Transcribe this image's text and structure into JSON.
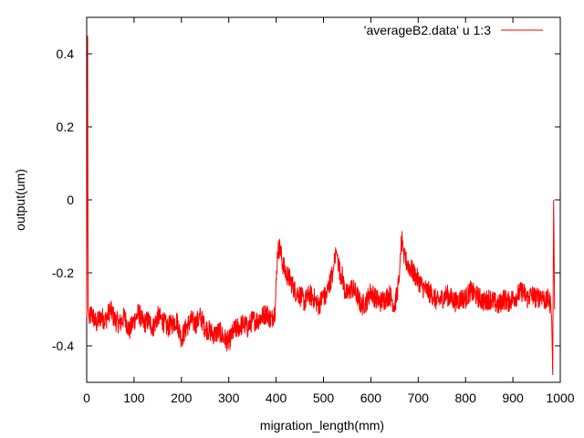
{
  "chart_data": {
    "type": "line",
    "xlabel": "migration_length(mm)",
    "ylabel": "output(um)",
    "xlim": [
      0,
      1000
    ],
    "ylim": [
      -0.5,
      0.5
    ],
    "xticks": [
      0,
      100,
      200,
      300,
      400,
      500,
      600,
      700,
      800,
      900,
      1000
    ],
    "yticks": [
      0.4,
      0.2,
      0,
      -0.2,
      -0.4
    ],
    "ytick_labels": [
      "0.4",
      "0.2",
      "0",
      "-0.2",
      "-0.4"
    ],
    "grid": false,
    "legend_position": "top-right",
    "series": [
      {
        "name": "'averageB2.data' u 1:3",
        "color": "#ff0000",
        "x": [
          0,
          2,
          3,
          5,
          10,
          20,
          30,
          40,
          50,
          60,
          70,
          80,
          90,
          100,
          110,
          120,
          130,
          140,
          150,
          160,
          170,
          180,
          190,
          200,
          210,
          220,
          230,
          240,
          250,
          260,
          270,
          280,
          290,
          300,
          310,
          320,
          330,
          340,
          350,
          360,
          370,
          380,
          390,
          398,
          403,
          408,
          413,
          420,
          430,
          440,
          450,
          460,
          470,
          480,
          490,
          500,
          505,
          510,
          515,
          520,
          523,
          527,
          530,
          535,
          540,
          545,
          550,
          560,
          570,
          580,
          590,
          600,
          610,
          620,
          630,
          640,
          650,
          655,
          660,
          663,
          667,
          670,
          680,
          690,
          700,
          710,
          720,
          730,
          740,
          750,
          760,
          770,
          780,
          790,
          800,
          810,
          820,
          830,
          840,
          850,
          860,
          870,
          880,
          890,
          900,
          910,
          920,
          930,
          940,
          950,
          960,
          970,
          975,
          980,
          982,
          984,
          986,
          988
        ],
        "y": [
          -0.32,
          0.45,
          -0.3,
          -0.33,
          -0.31,
          -0.34,
          -0.32,
          -0.33,
          -0.3,
          -0.33,
          -0.34,
          -0.32,
          -0.36,
          -0.33,
          -0.31,
          -0.34,
          -0.33,
          -0.35,
          -0.32,
          -0.33,
          -0.35,
          -0.34,
          -0.33,
          -0.38,
          -0.35,
          -0.33,
          -0.34,
          -0.32,
          -0.35,
          -0.36,
          -0.37,
          -0.36,
          -0.38,
          -0.39,
          -0.36,
          -0.35,
          -0.34,
          -0.35,
          -0.33,
          -0.33,
          -0.32,
          -0.31,
          -0.33,
          -0.3,
          -0.14,
          -0.13,
          -0.17,
          -0.2,
          -0.22,
          -0.25,
          -0.26,
          -0.28,
          -0.26,
          -0.27,
          -0.29,
          -0.26,
          -0.27,
          -0.24,
          -0.22,
          -0.2,
          -0.17,
          -0.14,
          -0.16,
          -0.2,
          -0.21,
          -0.25,
          -0.26,
          -0.24,
          -0.26,
          -0.29,
          -0.28,
          -0.25,
          -0.27,
          -0.28,
          -0.27,
          -0.26,
          -0.29,
          -0.26,
          -0.22,
          -0.13,
          -0.11,
          -0.16,
          -0.18,
          -0.2,
          -0.22,
          -0.24,
          -0.25,
          -0.26,
          -0.28,
          -0.27,
          -0.26,
          -0.27,
          -0.28,
          -0.27,
          -0.27,
          -0.25,
          -0.26,
          -0.27,
          -0.28,
          -0.27,
          -0.28,
          -0.29,
          -0.27,
          -0.28,
          -0.27,
          -0.26,
          -0.25,
          -0.27,
          -0.26,
          -0.27,
          -0.26,
          -0.28,
          -0.27,
          -0.29,
          -0.33,
          -0.48,
          0.0,
          -0.3
        ]
      }
    ]
  }
}
